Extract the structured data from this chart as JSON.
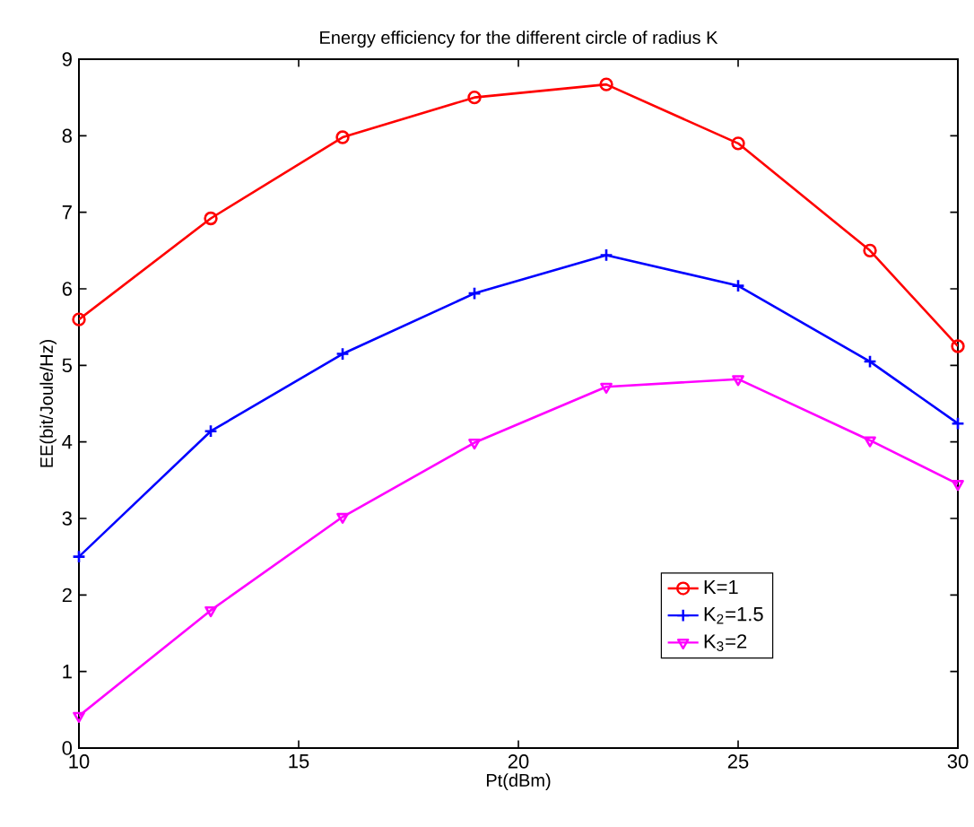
{
  "chart_data": {
    "type": "line",
    "title": "Energy efficiency for the different circle of radius K",
    "xlabel": "Pt(dBm)",
    "ylabel": "EE(bit/Joule/Hz)",
    "x": [
      10,
      13,
      16,
      19,
      22,
      25,
      28,
      30
    ],
    "series": [
      {
        "name": "K=1",
        "color": "#ff0000",
        "marker": "circle",
        "values": [
          5.6,
          6.92,
          7.98,
          8.5,
          8.67,
          7.9,
          6.5,
          5.25
        ]
      },
      {
        "name": "K$_{2}$=1.5",
        "color": "#0000ff",
        "marker": "cross",
        "values": [
          2.5,
          4.14,
          5.15,
          5.94,
          6.44,
          6.04,
          5.05,
          4.24
        ]
      },
      {
        "name": "K$_{3}$=2",
        "color": "#ff00ff",
        "marker": "triangle",
        "values": [
          0.42,
          1.8,
          3.02,
          3.99,
          4.72,
          4.82,
          4.02,
          3.45
        ]
      }
    ],
    "xlim": [
      10,
      30
    ],
    "xticks": [
      10,
      15,
      20,
      25,
      30
    ],
    "ylim": [
      0,
      9
    ],
    "yticks": [
      0,
      1,
      2,
      3,
      4,
      5,
      6,
      7,
      8,
      9
    ],
    "grid": false,
    "legend": "bottom right",
    "line_style": "solid"
  }
}
